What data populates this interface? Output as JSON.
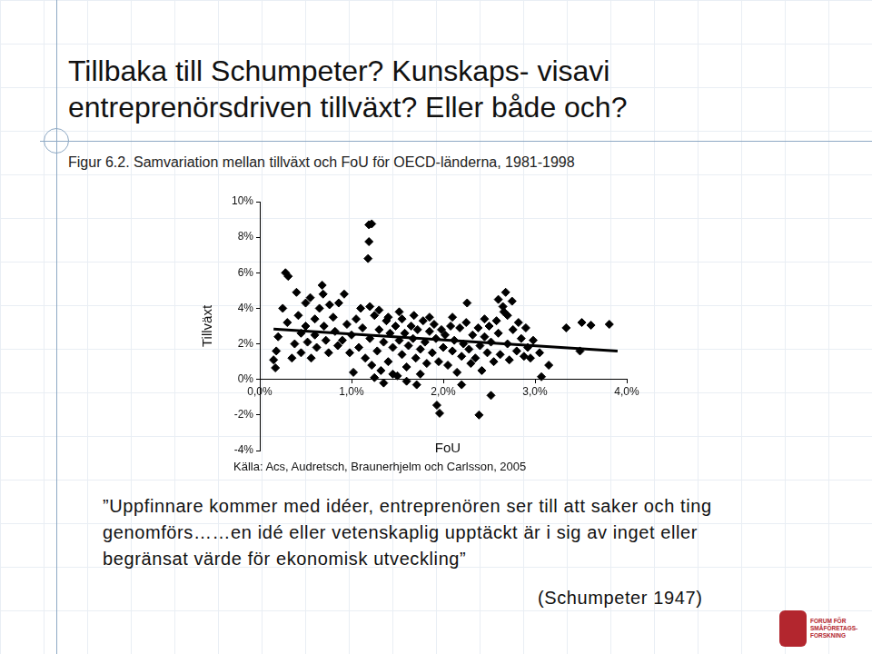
{
  "slide": {
    "title": [
      "Tillbaka till Schumpeter? Kunskaps- visavi",
      "entreprenörsdriven tillväxt? Eller både och?"
    ],
    "quote": [
      "”Uppfinnare kommer med idéer, entreprenören ser till att saker och ting",
      "genomförs……en idé eller vetenskaplig upptäckt är i sig av inget eller",
      "begränsat värde för ekonomisk utveckling”"
    ],
    "quote_author": "(Schumpeter 1947)",
    "logo": [
      "FORUM FÖR",
      "SMÅFÖRETAGS-",
      "FORSKNING"
    ]
  },
  "chart_data": {
    "type": "scatter",
    "title": "Figur 6.2. Samvariation mellan tillväxt och FoU för OECD-länderna, 1981-1998",
    "x_label": "FoU",
    "y_label": "Tillväxt",
    "annotations": [
      "Källa: Acs, Audretsch, Braunerhjelm och Carlsson, 2005"
    ],
    "xlim": [
      0,
      4
    ],
    "xticks": [
      {
        "value": 0,
        "label": "0,0%"
      },
      {
        "value": 1,
        "label": "1,0%"
      },
      {
        "value": 2,
        "label": "2,0%"
      },
      {
        "value": 3,
        "label": "3,0%"
      },
      {
        "value": 4,
        "label": "4,0%"
      }
    ],
    "ylim": [
      -4,
      10
    ],
    "yticks": [
      {
        "value": -4,
        "label": "-4%"
      },
      {
        "value": -2,
        "label": "-2%"
      },
      {
        "value": 0,
        "label": "0%"
      },
      {
        "value": 2,
        "label": "2%"
      },
      {
        "value": 4,
        "label": "4%"
      },
      {
        "value": 6,
        "label": "6%"
      },
      {
        "value": 8,
        "label": "8%"
      },
      {
        "value": 10,
        "label": "10%"
      }
    ],
    "grid": false,
    "series": [
      {
        "type": "scatter",
        "marker": "diamond",
        "color": "#000000",
        "values": [
          [
            0.17,
            0.65
          ],
          [
            0.15,
            1.1
          ],
          [
            0.18,
            1.6
          ],
          [
            0.2,
            2.4
          ],
          [
            0.28,
            6.0
          ],
          [
            0.31,
            5.8
          ],
          [
            0.25,
            4.0
          ],
          [
            0.3,
            3.2
          ],
          [
            0.35,
            1.2
          ],
          [
            0.38,
            2.0
          ],
          [
            0.4,
            4.9
          ],
          [
            0.42,
            3.6
          ],
          [
            0.45,
            2.6
          ],
          [
            0.45,
            1.5
          ],
          [
            0.5,
            4.3
          ],
          [
            0.5,
            3.0
          ],
          [
            0.52,
            2.1
          ],
          [
            0.55,
            4.6
          ],
          [
            0.56,
            1.2
          ],
          [
            0.6,
            3.4
          ],
          [
            0.6,
            2.5
          ],
          [
            0.62,
            1.8
          ],
          [
            0.65,
            4.0
          ],
          [
            0.68,
            5.3
          ],
          [
            0.69,
            4.8
          ],
          [
            0.7,
            3.0
          ],
          [
            0.72,
            2.2
          ],
          [
            0.75,
            1.5
          ],
          [
            0.76,
            4.2
          ],
          [
            0.8,
            3.5
          ],
          [
            0.82,
            2.7
          ],
          [
            0.85,
            1.9
          ],
          [
            0.86,
            4.3
          ],
          [
            0.9,
            2.2
          ],
          [
            0.92,
            4.8
          ],
          [
            0.95,
            3.1
          ],
          [
            0.98,
            1.5
          ],
          [
            1.0,
            2.5
          ],
          [
            1.02,
            0.4
          ],
          [
            1.05,
            3.4
          ],
          [
            1.08,
            1.8
          ],
          [
            1.18,
            6.8
          ],
          [
            1.19,
            7.75
          ],
          [
            1.19,
            8.7
          ],
          [
            1.22,
            8.75
          ],
          [
            1.12,
            2.9
          ],
          [
            1.15,
            1.2
          ],
          [
            1.2,
            2.3
          ],
          [
            1.22,
            0.8
          ],
          [
            1.25,
            3.6
          ],
          [
            1.28,
            1.6
          ],
          [
            1.3,
            2.8
          ],
          [
            1.32,
            0.5
          ],
          [
            1.35,
            2.1
          ],
          [
            1.38,
            3.3
          ],
          [
            1.4,
            1.0
          ],
          [
            1.42,
            2.6
          ],
          [
            1.45,
            1.8
          ],
          [
            1.48,
            3.0
          ],
          [
            1.5,
            0.2
          ],
          [
            1.52,
            2.2
          ],
          [
            1.55,
            1.4
          ],
          [
            1.55,
            3.4
          ],
          [
            1.58,
            2.6
          ],
          [
            1.6,
            0.7
          ],
          [
            1.62,
            1.9
          ],
          [
            1.65,
            3.0
          ],
          [
            1.67,
            2.3
          ],
          [
            1.7,
            1.2
          ],
          [
            1.71,
            -0.3
          ],
          [
            1.72,
            2.8
          ],
          [
            1.75,
            1.7
          ],
          [
            1.78,
            3.3
          ],
          [
            1.8,
            2.1
          ],
          [
            1.82,
            0.9
          ],
          [
            1.85,
            2.7
          ],
          [
            1.88,
            1.5
          ],
          [
            1.9,
            3.1
          ],
          [
            1.92,
            2.3
          ],
          [
            1.93,
            -1.45
          ],
          [
            1.95,
            1.0
          ],
          [
            1.96,
            -1.9
          ],
          [
            1.98,
            2.8
          ],
          [
            2.0,
            1.8
          ],
          [
            1.35,
            -0.2
          ],
          [
            1.45,
            0.3
          ],
          [
            1.6,
            -0.1
          ],
          [
            1.25,
            0.1
          ],
          [
            1.75,
            0.3
          ],
          [
            1.68,
            3.6
          ],
          [
            1.4,
            3.5
          ],
          [
            1.52,
            3.8
          ],
          [
            1.3,
            3.9
          ],
          [
            1.85,
            3.5
          ],
          [
            1.1,
            4.0
          ],
          [
            1.2,
            4.1
          ],
          [
            2.02,
            2.5
          ],
          [
            2.05,
            0.8
          ],
          [
            2.08,
            3.0
          ],
          [
            2.1,
            1.6
          ],
          [
            2.12,
            2.2
          ],
          [
            2.15,
            0.4
          ],
          [
            2.18,
            2.9
          ],
          [
            2.2,
            1.3
          ],
          [
            2.22,
            2.0
          ],
          [
            2.25,
            3.2
          ],
          [
            2.26,
            4.3
          ],
          [
            2.28,
            1.7
          ],
          [
            2.3,
            0.9
          ],
          [
            2.32,
            2.5
          ],
          [
            2.35,
            1.2
          ],
          [
            2.38,
            2.9
          ],
          [
            2.39,
            -2.0
          ],
          [
            2.4,
            1.9
          ],
          [
            2.42,
            0.5
          ],
          [
            2.45,
            2.4
          ],
          [
            2.48,
            1.5
          ],
          [
            2.5,
            3.0
          ],
          [
            2.52,
            -0.9
          ],
          [
            2.52,
            2.1
          ],
          [
            2.55,
            1.0
          ],
          [
            2.58,
            3.3
          ],
          [
            2.6,
            2.6
          ],
          [
            2.62,
            1.4
          ],
          [
            2.65,
            4.1
          ],
          [
            2.68,
            4.9
          ],
          [
            2.7,
            2.0
          ],
          [
            2.7,
            3.6
          ],
          [
            2.72,
            1.1
          ],
          [
            2.75,
            4.4
          ],
          [
            2.76,
            2.8
          ],
          [
            2.8,
            1.6
          ],
          [
            2.82,
            3.2
          ],
          [
            2.85,
            2.3
          ],
          [
            2.88,
            1.3
          ],
          [
            2.9,
            2.9
          ],
          [
            2.92,
            1.8
          ],
          [
            2.95,
            1.2
          ],
          [
            2.98,
            2.2
          ],
          [
            2.1,
            3.5
          ],
          [
            2.2,
            -0.3
          ],
          [
            2.45,
            3.4
          ],
          [
            2.6,
            4.5
          ],
          [
            2.66,
            3.8
          ],
          [
            3.07,
            0.15
          ],
          [
            3.15,
            0.8
          ],
          [
            3.34,
            2.9
          ],
          [
            3.51,
            3.2
          ],
          [
            3.61,
            3.05
          ],
          [
            3.81,
            3.1
          ],
          [
            3.49,
            1.6
          ],
          [
            3.05,
            1.5
          ]
        ]
      },
      {
        "type": "line",
        "line_style": "solid",
        "color": "#000000",
        "values": [
          [
            0.15,
            2.83
          ],
          [
            3.9,
            1.6
          ]
        ]
      }
    ]
  }
}
